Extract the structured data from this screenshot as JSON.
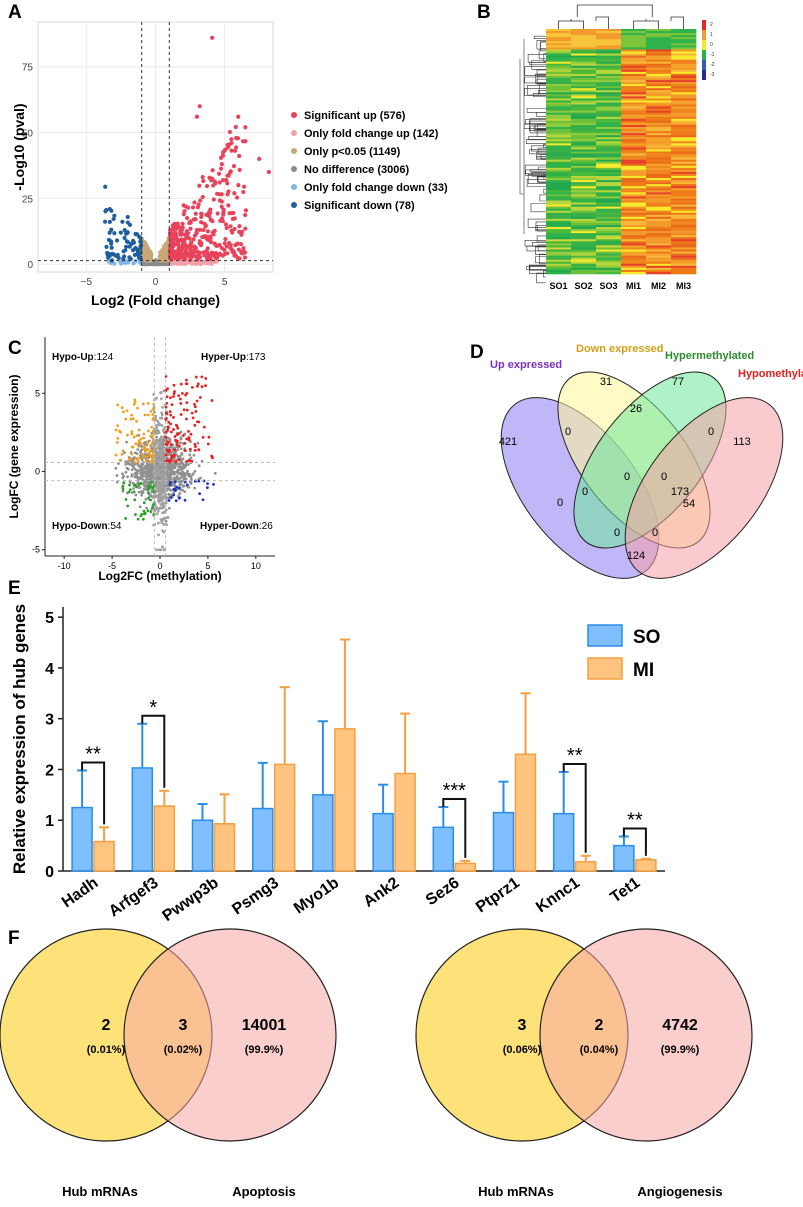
{
  "panel_labels": {
    "a": "A",
    "b": "B",
    "c": "C",
    "d": "D",
    "e": "E",
    "f": "F"
  },
  "chart_data": [
    {
      "id": "A",
      "type": "scatter",
      "title": "",
      "xlabel": "Log2 (Fold change)",
      "ylabel": "-Log10 (pval)",
      "xlim": [
        -8.5,
        8.5
      ],
      "ylim": [
        -3,
        92
      ],
      "xticks": [
        {
          "v": -5,
          "label": "−5"
        },
        {
          "v": 0,
          "label": "0"
        },
        {
          "v": 5,
          "label": "5"
        }
      ],
      "yticks": [
        {
          "v": 0,
          "label": "0"
        },
        {
          "v": 25,
          "label": "25"
        },
        {
          "v": 50,
          "label": "50"
        },
        {
          "v": 75,
          "label": "75"
        }
      ],
      "thresholds": {
        "x": [
          -1,
          1
        ],
        "y": 1.3
      },
      "legend": [
        {
          "label": "Significant up (576)",
          "color": "#e8435a"
        },
        {
          "label": "Only fold change up (142)",
          "color": "#f4a0aa"
        },
        {
          "label": "Only p<0.05 (1149)",
          "color": "#c8a876"
        },
        {
          "label": "No difference (3006)",
          "color": "#8a8a8a"
        },
        {
          "label": "Only fold change down (33)",
          "color": "#7fb4e6"
        },
        {
          "label": "Significant down (78)",
          "color": "#1f5f9e"
        }
      ]
    },
    {
      "id": "B",
      "type": "heatmap",
      "columns": [
        "SO1",
        "SO2",
        "SO3",
        "MI1",
        "MI2",
        "MI3"
      ],
      "scale": [
        {
          "v": "2",
          "color": "#e8232a"
        },
        {
          "v": "1",
          "color": "#f29a2c"
        },
        {
          "v": "0",
          "color": "#f7e92b"
        },
        {
          "v": "-1",
          "color": "#29b34a"
        },
        {
          "v": "-2",
          "color": "#2e60b8"
        },
        {
          "v": "-3",
          "color": "#2a2a9a"
        }
      ]
    },
    {
      "id": "C",
      "type": "scatter",
      "xlabel": "Log2FC (methylation)",
      "ylabel": "LogFC (gene expression)",
      "xlim": [
        -12,
        12
      ],
      "ylim": [
        -5.4,
        8.6
      ],
      "xticks": [
        {
          "v": -10,
          "label": "-10"
        },
        {
          "v": -5,
          "label": "-5"
        },
        {
          "v": 0,
          "label": "0"
        },
        {
          "v": 5,
          "label": "5"
        },
        {
          "v": 10,
          "label": "10"
        }
      ],
      "yticks": [
        {
          "v": -5,
          "label": "-5"
        },
        {
          "v": 0,
          "label": "0"
        },
        {
          "v": 5,
          "label": "5"
        }
      ],
      "quadrants": [
        {
          "name": "Hypo-Up",
          "count": "124",
          "color": "#f0a020"
        },
        {
          "name": "Hyper-Up",
          "count": "173",
          "color": "#e82020"
        },
        {
          "name": "Hypo-Down",
          "count": "54",
          "color": "#2ca02c"
        },
        {
          "name": "Hyper-Down",
          "count": "26",
          "color": "#2030c0"
        }
      ]
    },
    {
      "id": "D",
      "type": "venn",
      "sets": [
        {
          "label": "Up expressed",
          "color": "#7b2fbf"
        },
        {
          "label": "Down expressed",
          "color": "#d4a017"
        },
        {
          "label": "Hypermethylated",
          "color": "#2e8b2e"
        },
        {
          "label": "Hypomethylated",
          "color": "#e02020"
        }
      ],
      "values": [
        "421",
        "31",
        "77",
        "113",
        "0",
        "26",
        "0",
        "0",
        "0",
        "0",
        "173",
        "0",
        "54",
        "0",
        "0",
        "124"
      ]
    },
    {
      "id": "E",
      "type": "bar",
      "ylabel": "Relative expression of hub genes",
      "ylim": [
        0,
        5.2
      ],
      "yticks": [
        "0",
        "1",
        "2",
        "3",
        "4",
        "5"
      ],
      "categories": [
        "Hadh",
        "Arfgef3",
        "Pwwp3b",
        "Psmg3",
        "Myo1b",
        "Ank2",
        "Sez6",
        "Ptprz1",
        "Knnc1",
        "Tet1"
      ],
      "series": [
        {
          "name": "SO",
          "color": "#7fbfff",
          "stroke": "#2a8ee6",
          "values": [
            1.25,
            2.03,
            1.0,
            1.23,
            1.5,
            1.13,
            0.86,
            1.15,
            1.13,
            0.5
          ],
          "errors": [
            0.73,
            0.87,
            0.32,
            0.9,
            1.45,
            0.57,
            0.4,
            0.61,
            0.82,
            0.18
          ]
        },
        {
          "name": "MI",
          "color": "#ffc480",
          "stroke": "#f2a040",
          "values": [
            0.58,
            1.28,
            0.93,
            2.1,
            2.8,
            1.92,
            0.15,
            2.3,
            0.18,
            0.22
          ],
          "errors": [
            0.28,
            0.3,
            0.58,
            1.52,
            1.76,
            1.18,
            0.05,
            1.2,
            0.12,
            0.02
          ]
        }
      ],
      "significance": [
        {
          "category": "Hadh",
          "label": "**"
        },
        {
          "category": "Arfgef3",
          "label": "*"
        },
        {
          "category": "Sez6",
          "label": "***"
        },
        {
          "category": "Knnc1",
          "label": "**"
        },
        {
          "category": "Tet1",
          "label": "**"
        }
      ]
    },
    {
      "id": "F1",
      "type": "venn",
      "sets": [
        {
          "label": "Hub mRNAs"
        },
        {
          "label": "Apoptosis"
        }
      ],
      "regions": [
        {
          "count": "2",
          "pct": "(0.01%)"
        },
        {
          "count": "3",
          "pct": "(0.02%)"
        },
        {
          "count": "14001",
          "pct": "(99.9%)"
        }
      ]
    },
    {
      "id": "F2",
      "type": "venn",
      "sets": [
        {
          "label": "Hub mRNAs"
        },
        {
          "label": "Angiogenesis"
        }
      ],
      "regions": [
        {
          "count": "3",
          "pct": "(0.06%)"
        },
        {
          "count": "2",
          "pct": "(0.04%)"
        },
        {
          "count": "4742",
          "pct": "(99.9%)"
        }
      ]
    }
  ]
}
